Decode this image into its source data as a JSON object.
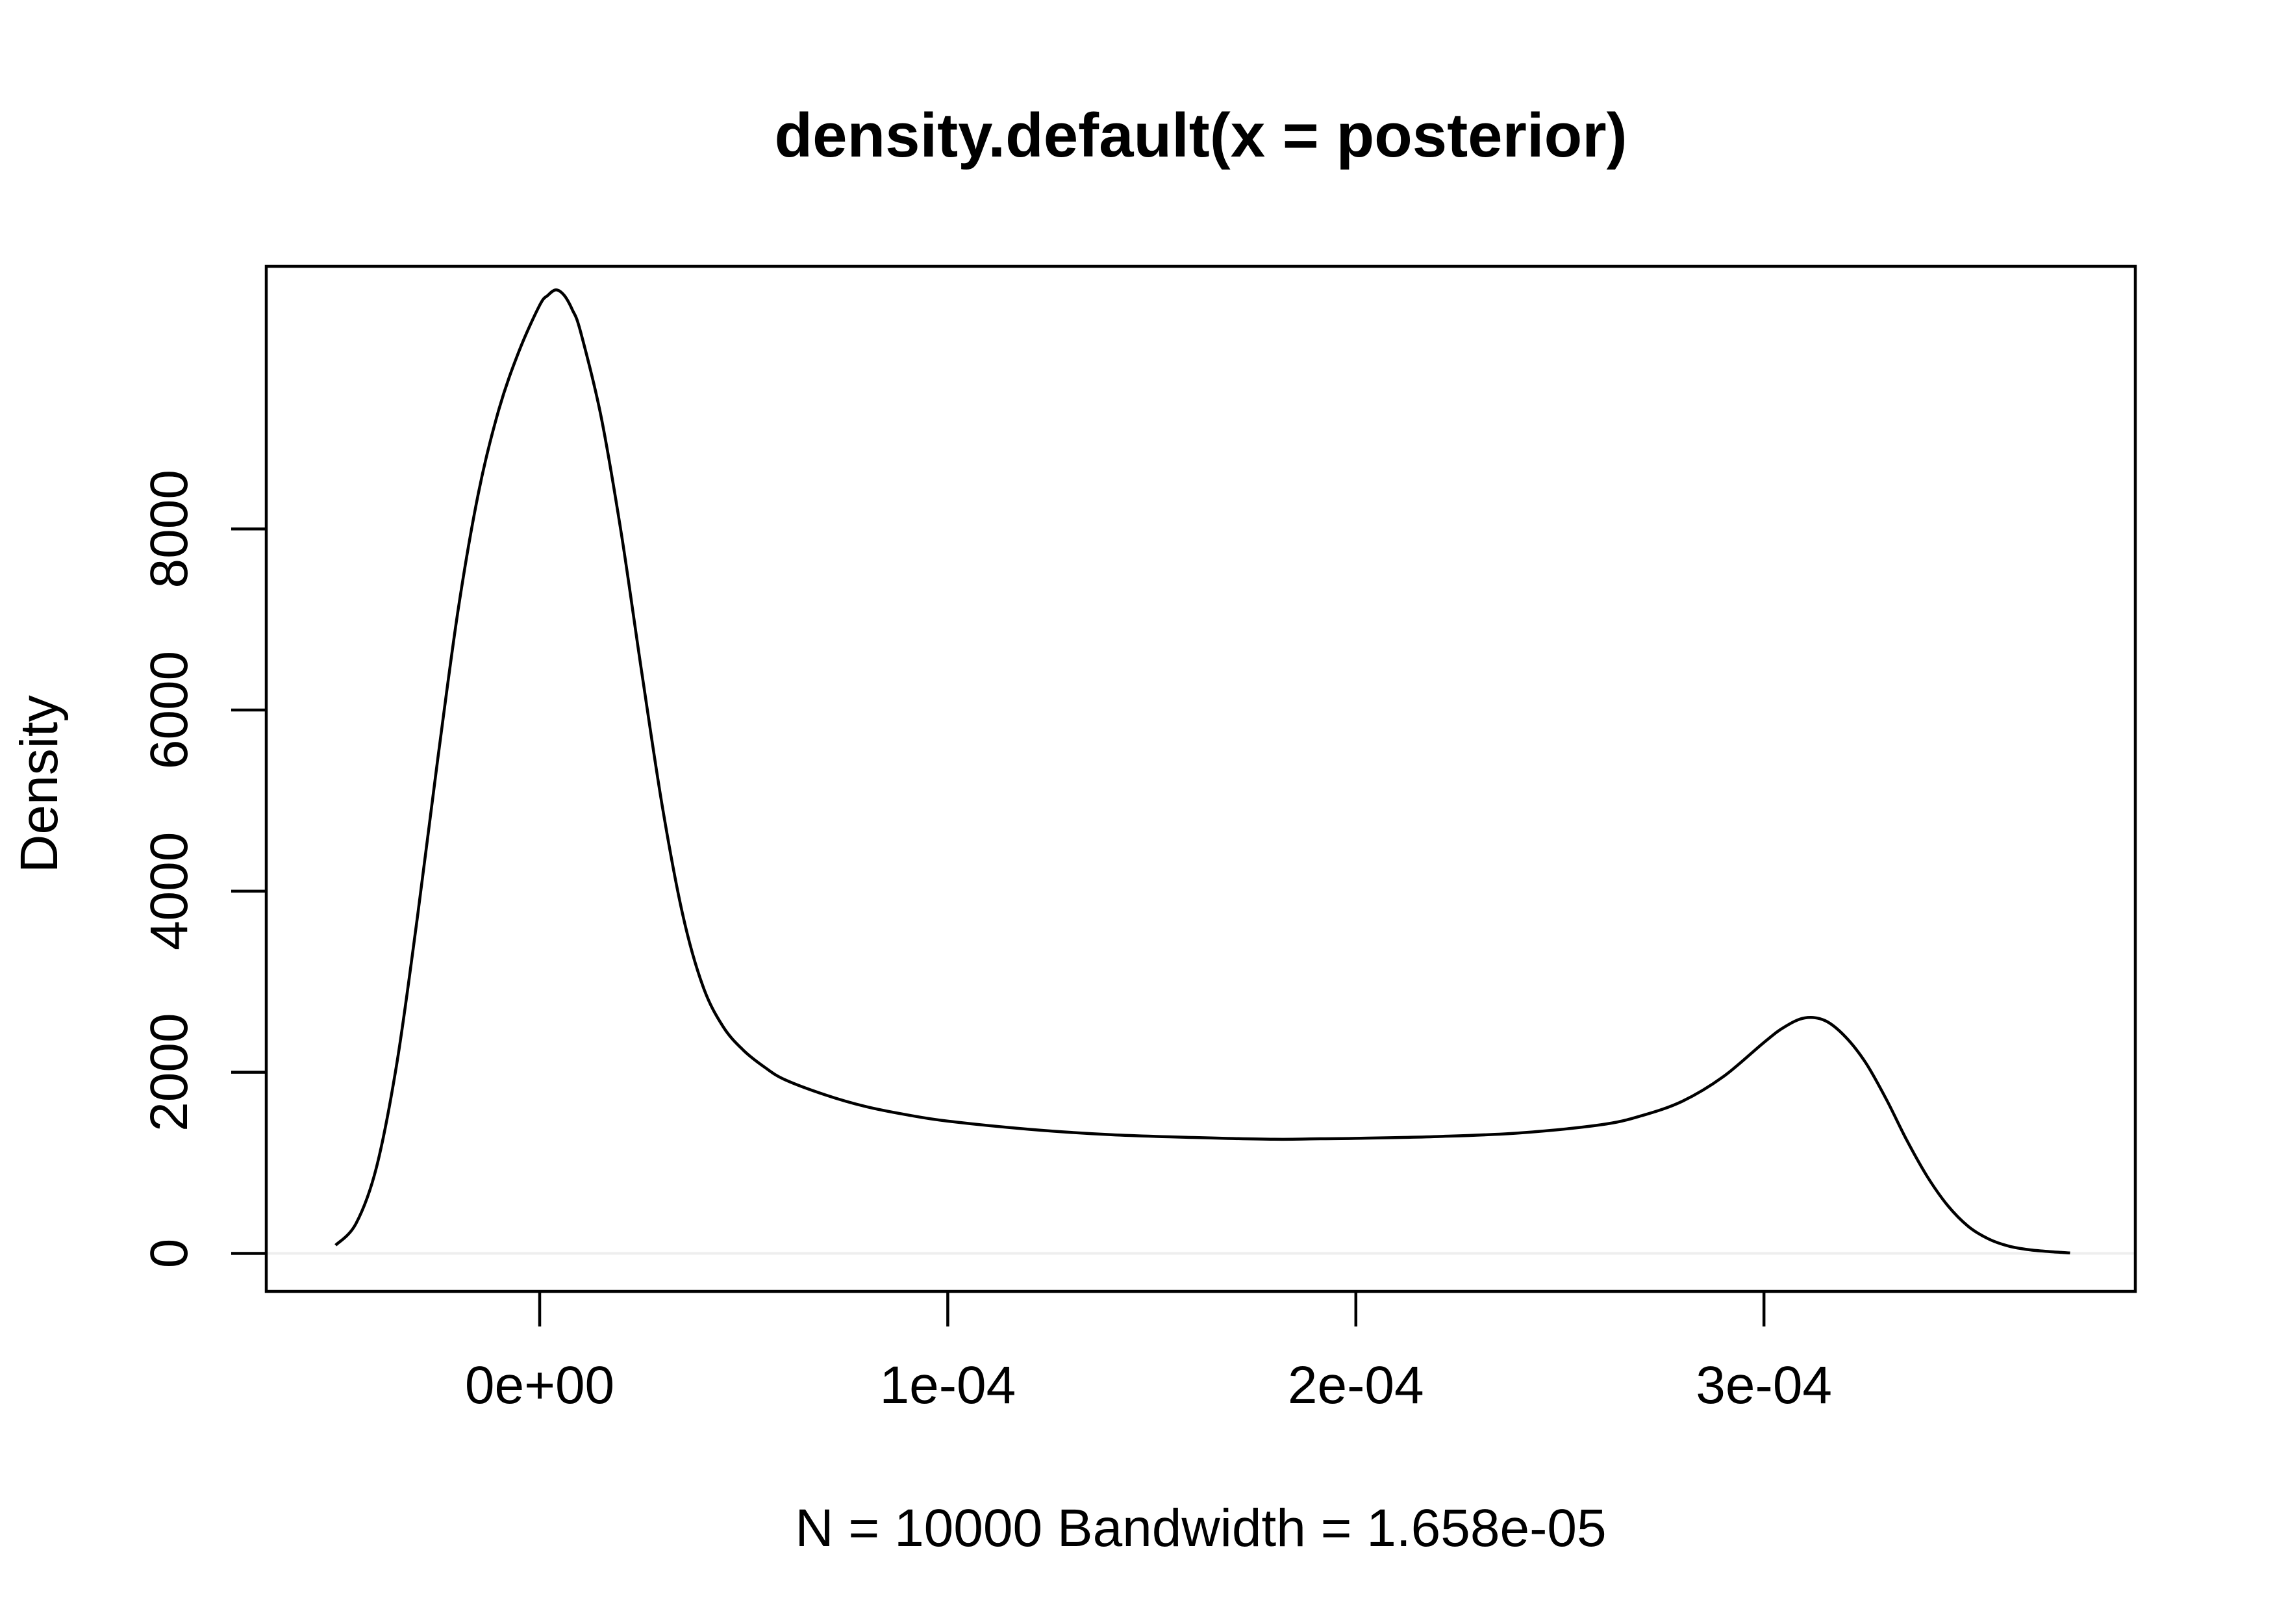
{
  "chart_data": {
    "type": "line",
    "title": "density.default(x = posterior)",
    "xlabel": "N = 10000   Bandwidth = 1.658e-05",
    "ylabel": "Density",
    "xlim": [
      -6.7e-05,
      0.000391
    ],
    "ylim": [
      -420,
      10900
    ],
    "x_ticks": [
      0,
      0.0001,
      0.0002,
      0.0003
    ],
    "x_tick_labels": [
      "0e+00",
      "1e-04",
      "2e-04",
      "3e-04"
    ],
    "y_ticks": [
      0,
      2000,
      4000,
      6000,
      8000
    ],
    "y_tick_labels": [
      "0",
      "2000",
      "4000",
      "6000",
      "8000"
    ],
    "grid": false,
    "legend": "none",
    "series": [
      {
        "x": [
          -5e-05,
          -4.5e-05,
          -4e-05,
          -3.5e-05,
          -3e-05,
          -2.5e-05,
          -2e-05,
          -1.5e-05,
          -1e-05,
          -5e-06,
          0.0,
          2e-06,
          4e-06,
          6e-06,
          8e-06,
          1e-05,
          1.5e-05,
          2e-05,
          2.5e-05,
          3e-05,
          3.5e-05,
          4e-05,
          4.5e-05,
          5e-05,
          5.5e-05,
          6e-05,
          7e-05,
          8e-05,
          9e-05,
          0.0001,
          0.00012,
          0.00014,
          0.00016,
          0.00018,
          0.00019,
          0.0002,
          0.00022,
          0.00024,
          0.00026,
          0.00027,
          0.00028,
          0.00029,
          0.0003,
          0.000305,
          0.00031,
          0.000315,
          0.00032,
          0.000325,
          0.00033,
          0.000335,
          0.00034,
          0.000345,
          0.00035,
          0.000355,
          0.00036,
          0.000365,
          0.00037,
          0.000375
        ],
        "y": [
          90,
          330,
          950,
          2100,
          3700,
          5450,
          7100,
          8400,
          9320,
          9970,
          10470,
          10580,
          10640,
          10580,
          10420,
          10180,
          9250,
          7950,
          6420,
          4950,
          3750,
          2950,
          2500,
          2240,
          2060,
          1920,
          1750,
          1620,
          1530,
          1460,
          1370,
          1310,
          1280,
          1260,
          1265,
          1270,
          1290,
          1330,
          1420,
          1520,
          1680,
          1950,
          2330,
          2500,
          2600,
          2570,
          2390,
          2100,
          1700,
          1250,
          850,
          530,
          300,
          160,
          80,
          40,
          20,
          5
        ]
      }
    ]
  }
}
